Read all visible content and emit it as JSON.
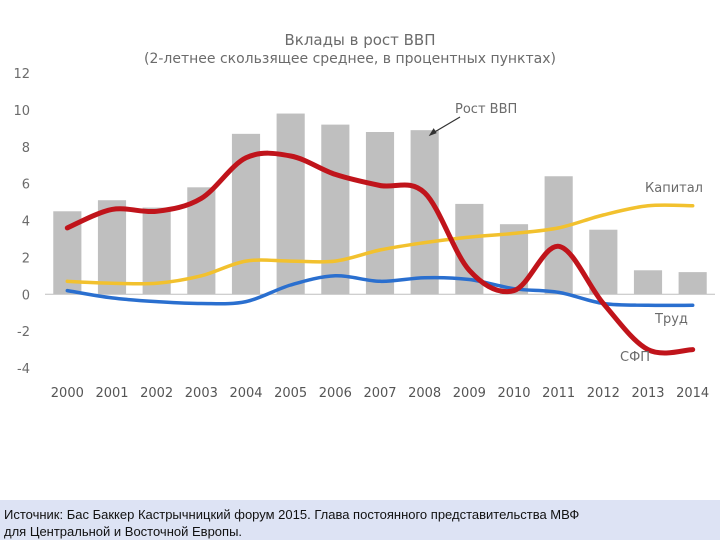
{
  "chart_data": {
    "type": "bar+line",
    "title": "Вклады в рост ВВП",
    "subtitle": "(2-летнее скользящее среднее, в процентных пунктах)",
    "categories": [
      "2000",
      "2001",
      "2002",
      "2003",
      "2004",
      "2005",
      "2006",
      "2007",
      "2008",
      "2009",
      "2010",
      "2011",
      "2012",
      "2013",
      "2014"
    ],
    "ylim": [
      -4,
      12
    ],
    "yticks": [
      -4,
      -2,
      0,
      2,
      4,
      6,
      8,
      10,
      12
    ],
    "grid": false,
    "bars": {
      "name": "Рост ВВП",
      "color": "#bfbfbf",
      "values": [
        4.5,
        5.1,
        4.7,
        5.8,
        8.7,
        9.8,
        9.2,
        8.8,
        8.9,
        4.9,
        3.8,
        6.4,
        3.5,
        1.3,
        1.2
      ]
    },
    "series": [
      {
        "name": "Капитал",
        "color": "#f2c12e",
        "values": [
          0.7,
          0.6,
          0.6,
          1.0,
          1.8,
          1.8,
          1.8,
          2.4,
          2.8,
          3.1,
          3.3,
          3.6,
          4.3,
          4.8,
          4.8
        ]
      },
      {
        "name": "Труд",
        "color": "#2a6fcf",
        "values": [
          0.2,
          -0.2,
          -0.4,
          -0.5,
          -0.4,
          0.5,
          1.0,
          0.7,
          0.9,
          0.8,
          0.3,
          0.1,
          -0.5,
          -0.6,
          -0.6
        ]
      },
      {
        "name": "СФП",
        "color": "#c0141b",
        "values": [
          3.6,
          4.6,
          4.5,
          5.2,
          7.4,
          7.5,
          6.5,
          5.9,
          5.5,
          1.3,
          0.2,
          2.6,
          -0.5,
          -3.0,
          -3.0
        ]
      }
    ],
    "annotations": {
      "arrow_to": "2008"
    }
  },
  "source": {
    "line1": "Источник: Бас Баккер Кастрычницкий форум 2015. Глава постоянного представительства МВФ",
    "line2": "для Центральной и Восточной Европы."
  }
}
